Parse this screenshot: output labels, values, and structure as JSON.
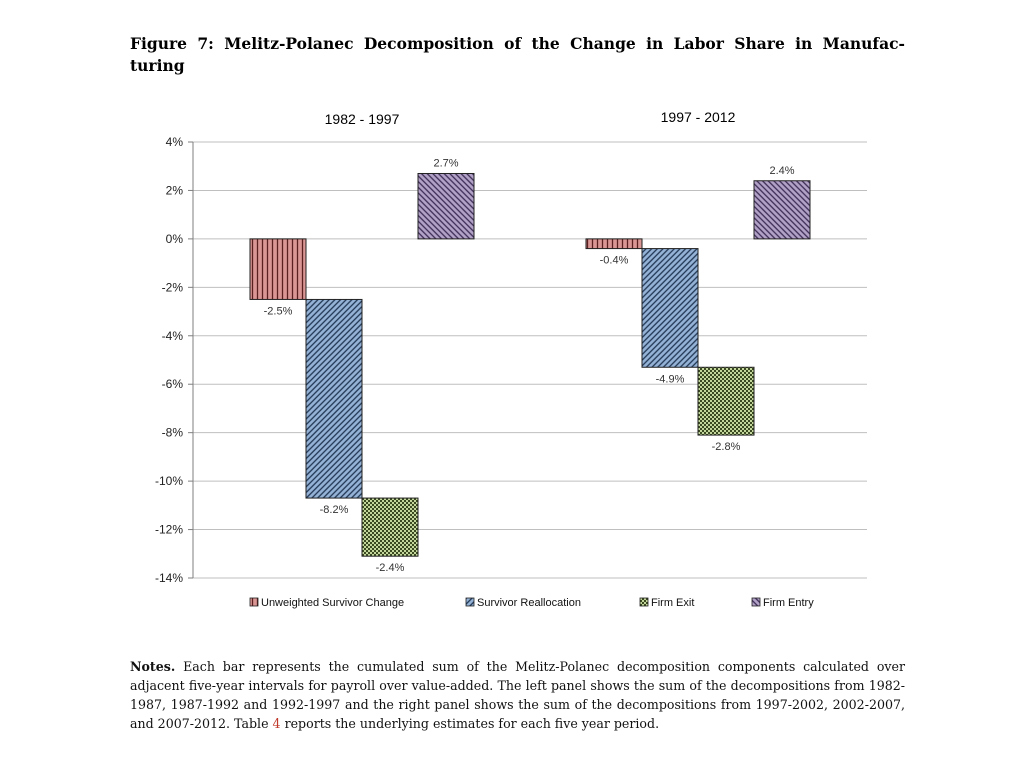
{
  "figure": {
    "title": "Figure 7:  Melitz-Polanec Decomposition of the Change in Labor Share in Manufac-turing"
  },
  "notes": {
    "label": "Notes.",
    "text_before_ref": "Each bar represents the cumulated sum of the Melitz-Polanec decomposition components calculated over adjacent five-year intervals for payroll over value-added.  The left panel shows the sum of the decompositions from 1982-1987, 1987-1992 and 1992-1997 and the right panel shows the sum of the decompositions from 1997-2002, 2002-2007, and 2007-2012.  Table",
    "ref": "4",
    "text_after_ref": "reports the underlying estimates for each five year period."
  },
  "chart_data": {
    "type": "bar",
    "style": "waterfall",
    "y_tick_labels": [
      "4%",
      "2%",
      "0%",
      "-2%",
      "-4%",
      "-6%",
      "-8%",
      "-10%",
      "-12%",
      "-14%"
    ],
    "ylim": [
      -14,
      4
    ],
    "grid": true,
    "legend_position": "bottom",
    "panels": [
      {
        "title": "1982 - 1997",
        "bars": [
          {
            "series": "Unweighted Survivor Change",
            "value": -2.5,
            "label": "-2.5%"
          },
          {
            "series": "Survivor Reallocation",
            "value": -8.2,
            "label": "-8.2%"
          },
          {
            "series": "Firm Exit",
            "value": -2.4,
            "label": "-2.4%"
          },
          {
            "series": "Firm Entry",
            "value": 2.7,
            "label": "2.7%"
          }
        ]
      },
      {
        "title": "1997 - 2012",
        "bars": [
          {
            "series": "Unweighted Survivor Change",
            "value": -0.4,
            "label": "-0.4%"
          },
          {
            "series": "Survivor Reallocation",
            "value": -4.9,
            "label": "-4.9%"
          },
          {
            "series": "Firm Exit",
            "value": -2.8,
            "label": "-2.8%"
          },
          {
            "series": "Firm Entry",
            "value": 2.4,
            "label": "2.4%"
          }
        ]
      }
    ],
    "series": [
      {
        "name": "Unweighted Survivor Change",
        "color": "#d99694",
        "pattern": "vertical-lines"
      },
      {
        "name": "Survivor Reallocation",
        "color": "#95b3d7",
        "pattern": "diagonal-lines"
      },
      {
        "name": "Firm Exit",
        "color": "#c3d69b",
        "pattern": "checker"
      },
      {
        "name": "Firm Entry",
        "color": "#b3a2c7",
        "pattern": "diagonal-lines-reverse"
      }
    ]
  }
}
